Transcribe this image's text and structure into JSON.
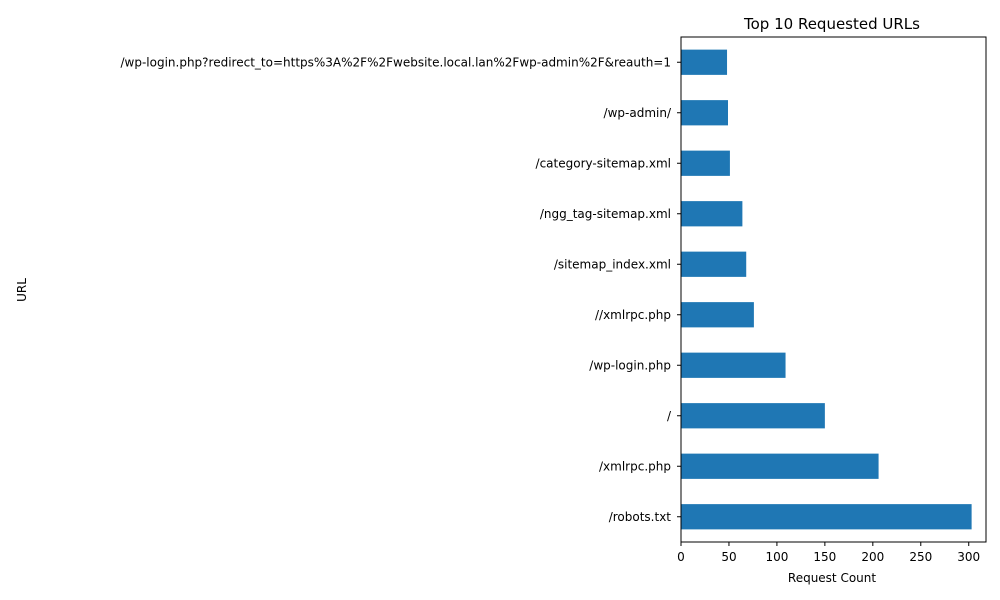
{
  "chart_data": {
    "type": "bar",
    "orientation": "horizontal",
    "title": "Top 10 Requested URLs",
    "xlabel": "Request Count",
    "ylabel": "URL",
    "xlim": [
      0,
      318
    ],
    "xticks": [
      0,
      50,
      100,
      150,
      200,
      250,
      300
    ],
    "grid": false,
    "bar_color": "#1f77b4",
    "categories": [
      "/robots.txt",
      "/xmlrpc.php",
      "/",
      "/wp-login.php",
      "//xmlrpc.php",
      "/sitemap_index.xml",
      "/ngg_tag-sitemap.xml",
      "/category-sitemap.xml",
      "/wp-admin/",
      "/wp-login.php?redirect_to=https%3A%2F%2Fwebsite.local.lan%2Fwp-admin%2F&reauth=1"
    ],
    "values": [
      303,
      206,
      150,
      109,
      76,
      68,
      64,
      51,
      49,
      48
    ]
  }
}
